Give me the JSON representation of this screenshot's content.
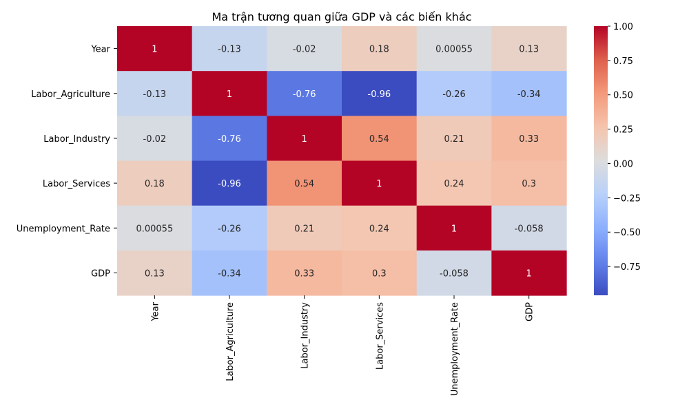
{
  "chart_data": {
    "type": "heatmap",
    "title": "Ma trận tương quan giữa GDP và các biến khác",
    "xlabel": "",
    "ylabel": "",
    "x_labels": [
      "Year",
      "Labor_Agriculture",
      "Labor_Industry",
      "Labor_Services",
      "Unemployment_Rate",
      "GDP"
    ],
    "y_labels": [
      "Year",
      "Labor_Agriculture",
      "Labor_Industry",
      "Labor_Services",
      "Unemployment_Rate",
      "GDP"
    ],
    "values": [
      [
        1,
        -0.13,
        -0.02,
        0.18,
        0.00055,
        0.13
      ],
      [
        -0.13,
        1,
        -0.76,
        -0.96,
        -0.26,
        -0.34
      ],
      [
        -0.02,
        -0.76,
        1,
        0.54,
        0.21,
        0.33
      ],
      [
        0.18,
        -0.96,
        0.54,
        1,
        0.24,
        0.3
      ],
      [
        0.00055,
        -0.26,
        0.21,
        0.24,
        1,
        -0.058
      ],
      [
        0.13,
        -0.34,
        0.33,
        0.3,
        -0.058,
        1
      ]
    ],
    "cell_labels": [
      [
        "1",
        "-0.13",
        "-0.02",
        "0.18",
        "0.00055",
        "0.13"
      ],
      [
        "-0.13",
        "1",
        "-0.76",
        "-0.96",
        "-0.26",
        "-0.34"
      ],
      [
        "-0.02",
        "-0.76",
        "1",
        "0.54",
        "0.21",
        "0.33"
      ],
      [
        "0.18",
        "-0.96",
        "0.54",
        "1",
        "0.24",
        "0.3"
      ],
      [
        "0.00055",
        "-0.26",
        "0.21",
        "0.24",
        "1",
        "-0.058"
      ],
      [
        "0.13",
        "-0.34",
        "0.33",
        "0.3",
        "-0.058",
        "1"
      ]
    ],
    "colormap": "coolwarm",
    "color_range": [
      -0.96,
      1
    ],
    "colorbar_ticks": [
      1.0,
      0.75,
      0.5,
      0.25,
      0.0,
      -0.25,
      -0.5,
      -0.75
    ],
    "colorbar_tick_labels": [
      "1.00",
      "0.75",
      "0.50",
      "0.25",
      "0.00",
      "−0.25",
      "−0.50",
      "−0.75"
    ],
    "grid": false,
    "legend": "colorbar-right"
  }
}
